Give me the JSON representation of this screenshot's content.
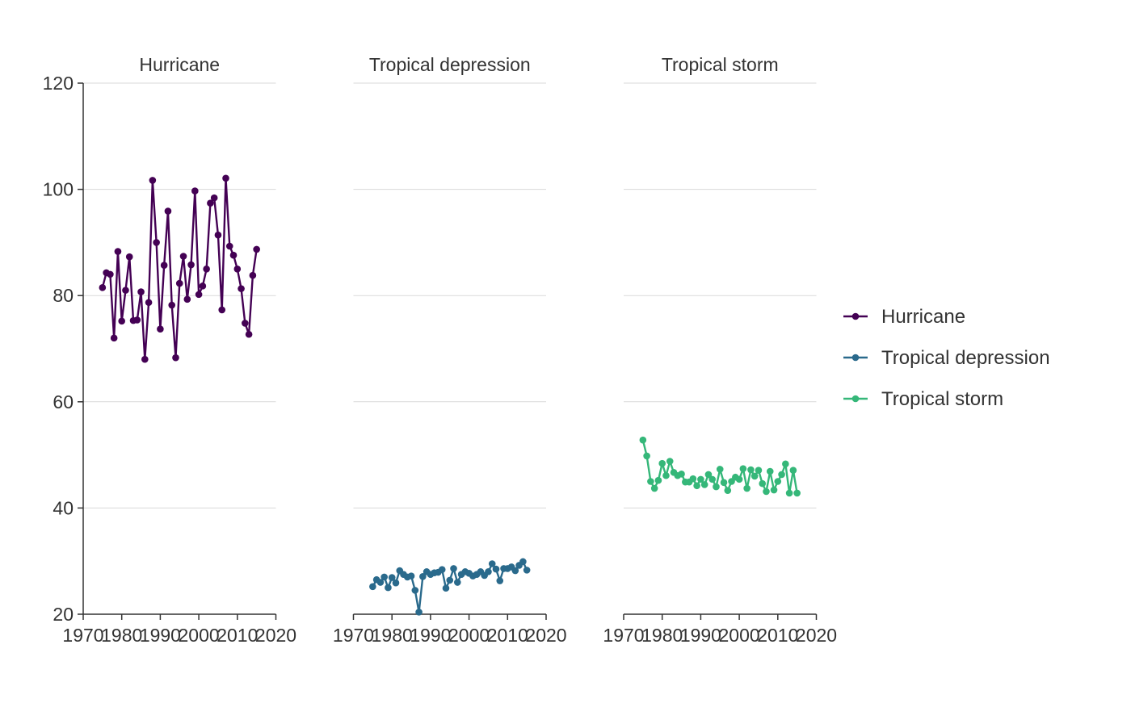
{
  "chart_data": {
    "type": "line",
    "facets": [
      "Hurricane",
      "Tropical depression",
      "Tropical storm"
    ],
    "xticks": [
      1970,
      1980,
      1990,
      2000,
      2010,
      2020
    ],
    "yticks": [
      20,
      40,
      60,
      80,
      100,
      120
    ],
    "xlim": [
      1970,
      2020
    ],
    "ylim": [
      20,
      120
    ],
    "grid": "horizontal",
    "legend_position": "right",
    "x": [
      1975,
      1976,
      1977,
      1978,
      1979,
      1980,
      1981,
      1982,
      1983,
      1984,
      1985,
      1986,
      1987,
      1988,
      1989,
      1990,
      1991,
      1992,
      1993,
      1994,
      1995,
      1996,
      1997,
      1998,
      1999,
      2000,
      2001,
      2002,
      2003,
      2004,
      2005,
      2006,
      2007,
      2008,
      2009,
      2010,
      2011,
      2012,
      2013,
      2014,
      2015
    ],
    "series": [
      {
        "name": "Hurricane",
        "color": "#440154",
        "values": [
          81.5,
          84.3,
          84.0,
          72.0,
          88.3,
          75.2,
          81.0,
          87.3,
          75.3,
          75.4,
          80.7,
          68.0,
          78.7,
          101.7,
          90.0,
          73.7,
          85.7,
          95.9,
          78.2,
          68.3,
          82.3,
          87.4,
          79.3,
          85.8,
          99.7,
          80.2,
          81.8,
          85.0,
          97.4,
          98.4,
          91.4,
          77.3,
          102.1,
          89.3,
          87.6,
          85.0,
          81.3,
          74.8,
          72.7,
          83.8,
          88.7
        ]
      },
      {
        "name": "Tropical depression",
        "color": "#2a6a8c",
        "values": [
          25.2,
          26.5,
          26.0,
          27.0,
          25.0,
          26.9,
          25.9,
          28.2,
          27.5,
          27.0,
          27.2,
          24.5,
          20.4,
          27.1,
          28.0,
          27.5,
          27.8,
          27.9,
          28.4,
          24.9,
          26.4,
          28.6,
          26.0,
          27.5,
          28.0,
          27.7,
          27.2,
          27.5,
          28.0,
          27.3,
          28.0,
          29.5,
          28.5,
          26.3,
          28.6,
          28.6,
          28.9,
          28.2,
          29.2,
          29.9,
          28.3
        ]
      },
      {
        "name": "Tropical storm",
        "color": "#35b779",
        "values": [
          52.8,
          49.8,
          45.0,
          43.7,
          45.2,
          48.4,
          46.1,
          48.8,
          46.7,
          46.1,
          46.4,
          44.9,
          44.9,
          45.5,
          44.2,
          45.4,
          44.4,
          46.3,
          45.4,
          44.0,
          47.3,
          44.8,
          43.3,
          45.0,
          45.8,
          45.4,
          47.4,
          43.7,
          47.2,
          46.0,
          47.1,
          44.6,
          43.1,
          46.9,
          43.4,
          45.0,
          46.3,
          48.3,
          42.8,
          47.1,
          42.8
        ]
      }
    ]
  }
}
